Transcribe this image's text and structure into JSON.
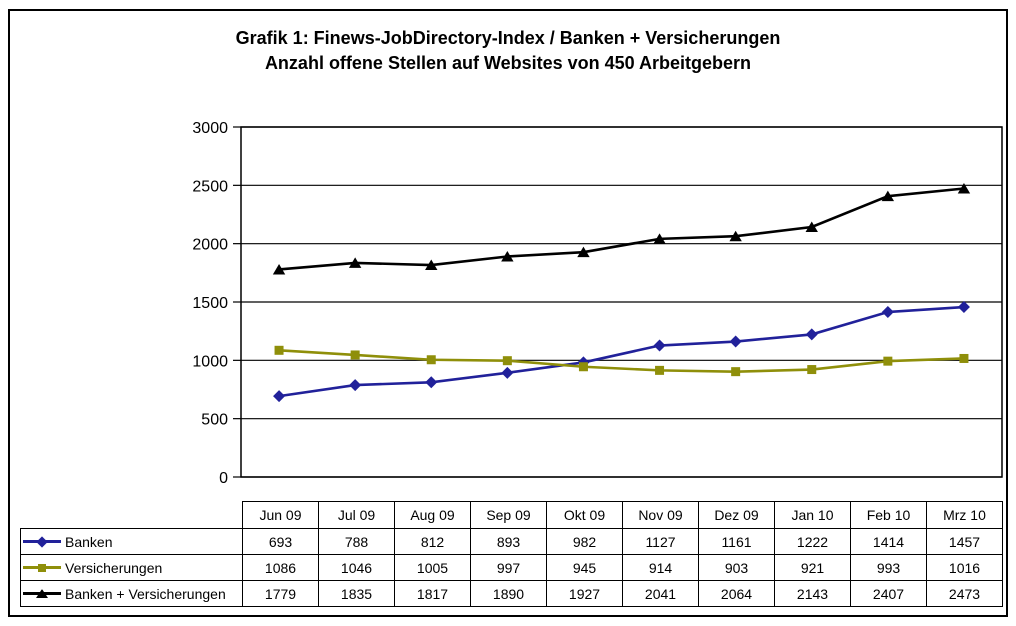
{
  "chart_data": {
    "type": "line",
    "title": "Grafik 1: Finews-JobDirectory-Index / Banken + Versicherungen",
    "subtitle": "Anzahl offene Stellen auf Websites von 450 Arbeitgebern",
    "categories": [
      "Jun 09",
      "Jul 09",
      "Aug 09",
      "Sep 09",
      "Okt 09",
      "Nov 09",
      "Dez 09",
      "Jan 10",
      "Feb 10",
      "Mrz 10"
    ],
    "series": [
      {
        "name": "Banken",
        "color": "#21219A",
        "marker": "diamond",
        "values": [
          693,
          788,
          812,
          893,
          982,
          1127,
          1161,
          1222,
          1414,
          1457
        ]
      },
      {
        "name": "Versicherungen",
        "color": "#8F8F0A",
        "marker": "square",
        "values": [
          1086,
          1046,
          1005,
          997,
          945,
          914,
          903,
          921,
          993,
          1016
        ]
      },
      {
        "name": "Banken + Versicherungen",
        "color": "#000000",
        "marker": "triangle",
        "values": [
          1779,
          1835,
          1817,
          1890,
          1927,
          2041,
          2064,
          2143,
          2407,
          2473
        ]
      }
    ],
    "xlabel": "",
    "ylabel": "",
    "ylim": [
      0,
      3000
    ],
    "ytick_step": 500,
    "grid": "horizontal",
    "legend_position": "table-left",
    "axis_color": "#000000",
    "background_color": "#FFFFFF"
  }
}
